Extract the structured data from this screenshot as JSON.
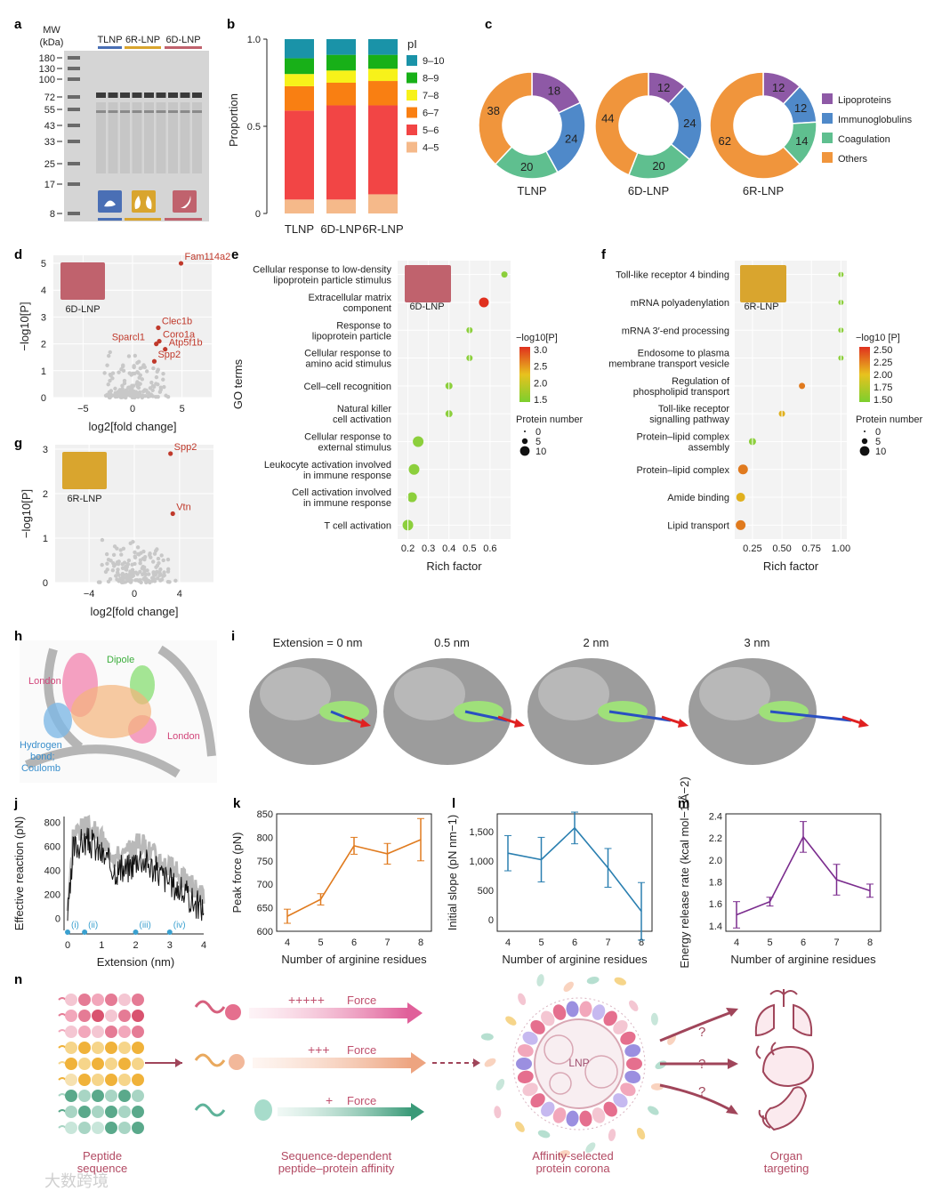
{
  "panels": [
    "a",
    "b",
    "c",
    "d",
    "e",
    "f",
    "g",
    "h",
    "i",
    "j",
    "k",
    "l",
    "m",
    "n"
  ],
  "a": {
    "mw_label": [
      "MW",
      "(kDa)"
    ],
    "markers": [
      "180",
      "130",
      "100",
      "72",
      "55",
      "43",
      "33",
      "25",
      "17",
      "8"
    ],
    "groups": [
      "TLNP",
      "6R-LNP",
      "6D-LNP"
    ],
    "group_colors": [
      "#4a6fb5",
      "#d9a52e",
      "#c0626d"
    ]
  },
  "b": {
    "ylabel": "Proportion",
    "yticks": [
      "0",
      "0.5",
      "1.0"
    ],
    "legend_title": "pI",
    "legend": [
      "9–10",
      "8–9",
      "7–8",
      "6–7",
      "5–6",
      "4–5"
    ],
    "colors": [
      "#1a93a8",
      "#18b018",
      "#f7f21a",
      "#f97f12",
      "#f24545",
      "#f5b98a"
    ]
  },
  "chart_data": [
    {
      "type": "bar",
      "categories": [
        "TLNP",
        "6D-LNP",
        "6R-LNP"
      ],
      "series": [
        {
          "name": "4–5",
          "values": [
            0.08,
            0.08,
            0.11
          ]
        },
        {
          "name": "5–6",
          "values": [
            0.51,
            0.54,
            0.51
          ]
        },
        {
          "name": "6–7",
          "values": [
            0.14,
            0.13,
            0.14
          ]
        },
        {
          "name": "7–8",
          "values": [
            0.07,
            0.07,
            0.07
          ]
        },
        {
          "name": "8–9",
          "values": [
            0.09,
            0.09,
            0.08
          ]
        },
        {
          "name": "9–10",
          "values": [
            0.11,
            0.09,
            0.09
          ]
        }
      ],
      "ylabel": "Proportion",
      "ylim": [
        0,
        1
      ]
    },
    {
      "type": "pie",
      "groups": [
        {
          "name": "TLNP",
          "values": [
            18,
            24,
            20,
            38
          ]
        },
        {
          "name": "6D-LNP",
          "values": [
            12,
            24,
            20,
            44
          ]
        },
        {
          "name": "6R-LNP",
          "values": [
            12,
            12,
            14,
            62
          ]
        }
      ],
      "labels": [
        "Lipoproteins",
        "Immunoglobulins",
        "Coagulation",
        "Others"
      ],
      "colors": [
        "#8e59a6",
        "#4f89c9",
        "#5fbf8f",
        "#f0953c"
      ]
    },
    {
      "type": "scatter",
      "title": "6D-LNP",
      "xlabel": "log2[fold change]",
      "ylabel": "−log10[P]",
      "xlim": [
        -8,
        8
      ],
      "ylim": [
        0,
        5.3
      ],
      "xticks": [
        "−5",
        "0",
        "5"
      ],
      "yticks": [
        "0",
        "1",
        "2",
        "3",
        "4",
        "5"
      ],
      "highlight": [
        {
          "name": "Fam114a2",
          "x": 4.9,
          "y": 5.0
        },
        {
          "name": "Clec1b",
          "x": 2.6,
          "y": 2.6
        },
        {
          "name": "Coro1a",
          "x": 2.7,
          "y": 2.1
        },
        {
          "name": "Sparcl1",
          "x": 2.4,
          "y": 2.0
        },
        {
          "name": "Atp5f1b",
          "x": 3.3,
          "y": 1.8
        },
        {
          "name": "Spp2",
          "x": 2.2,
          "y": 1.35
        }
      ]
    },
    {
      "type": "scatter",
      "title": "6R-LNP",
      "xlabel": "log2[fold change]",
      "ylabel": "−log10[P]",
      "xlim": [
        -7,
        7
      ],
      "ylim": [
        0,
        3.1
      ],
      "xticks": [
        "−4",
        "0",
        "4"
      ],
      "yticks": [
        "0",
        "1",
        "2",
        "3"
      ],
      "highlight": [
        {
          "name": "Spp2",
          "x": 3.2,
          "y": 2.9
        },
        {
          "name": "Vtn",
          "x": 3.4,
          "y": 1.55
        }
      ]
    },
    {
      "type": "scatter",
      "title": "6D-LNP",
      "xlabel": "Rich factor",
      "ylabel": "GO terms",
      "xticks": [
        "0.2",
        "0.3",
        "0.4",
        "0.5",
        "0.6"
      ],
      "terms": [
        {
          "label": "Cellular response to low-density lipoprotein particle stimulus",
          "x": 0.67,
          "p": 1.6,
          "n": 3
        },
        {
          "label": "Extracellular matrix component",
          "x": 0.57,
          "p": 3.0,
          "n": 7
        },
        {
          "label": "Response to lipoprotein particle",
          "x": 0.5,
          "p": 1.7,
          "n": 3
        },
        {
          "label": "Cellular response to amino acid stimulus",
          "x": 0.5,
          "p": 1.7,
          "n": 3
        },
        {
          "label": "Cell–cell recognition",
          "x": 0.4,
          "p": 1.7,
          "n": 4
        },
        {
          "label": "Natural killer cell activation",
          "x": 0.4,
          "p": 1.6,
          "n": 4
        },
        {
          "label": "Cellular response to external stimulus",
          "x": 0.25,
          "p": 1.6,
          "n": 8
        },
        {
          "label": "Leukocyte activation involved in immune response",
          "x": 0.23,
          "p": 1.6,
          "n": 8
        },
        {
          "label": "Cell activation involved in immune response",
          "x": 0.22,
          "p": 1.6,
          "n": 7
        },
        {
          "label": "T cell activation",
          "x": 0.2,
          "p": 1.6,
          "n": 8
        }
      ],
      "legend_p": [
        "3.0",
        "2.5",
        "2.0",
        "1.5"
      ],
      "legend_n": [
        "0",
        "5",
        "10"
      ]
    },
    {
      "type": "scatter",
      "title": "6R-LNP",
      "xlabel": "Rich factor",
      "xticks": [
        "0.25",
        "0.50",
        "0.75",
        "1.00"
      ],
      "terms": [
        {
          "label": "Toll-like receptor 4 binding",
          "x": 1.0,
          "p": 1.55,
          "n": 2
        },
        {
          "label": "mRNA polyadenylation",
          "x": 1.0,
          "p": 1.55,
          "n": 2
        },
        {
          "label": "mRNA 3′-end processing",
          "x": 1.0,
          "p": 1.55,
          "n": 2
        },
        {
          "label": "Endosome to plasma membrane transport vesicle",
          "x": 1.0,
          "p": 1.55,
          "n": 2
        },
        {
          "label": "Regulation of phospholipid transport",
          "x": 0.67,
          "p": 2.2,
          "n": 3
        },
        {
          "label": "Toll-like receptor signalling pathway",
          "x": 0.5,
          "p": 2.1,
          "n": 3
        },
        {
          "label": "Protein–lipid complex assembly",
          "x": 0.25,
          "p": 1.6,
          "n": 4
        },
        {
          "label": "Protein–lipid complex",
          "x": 0.17,
          "p": 2.5,
          "n": 7
        },
        {
          "label": "Amide binding",
          "x": 0.15,
          "p": 1.9,
          "n": 6
        },
        {
          "label": "Lipid transport",
          "x": 0.15,
          "p": 2.3,
          "n": 7
        }
      ],
      "legend_p": [
        "2.50",
        "2.25",
        "2.00",
        "1.75",
        "1.50"
      ],
      "legend_n": [
        "0",
        "5",
        "10"
      ]
    },
    {
      "type": "line",
      "xlabel": "Extension (nm)",
      "ylabel": "Effective reaction (pN)",
      "xlim": [
        0,
        4
      ],
      "ylim": [
        -100,
        850
      ],
      "xticks": [
        "0",
        "1",
        "2",
        "3",
        "4"
      ],
      "yticks": [
        "0",
        "200",
        "400",
        "600",
        "800"
      ],
      "markers": [
        {
          "name": "(i)",
          "x": 0
        },
        {
          "name": "(ii)",
          "x": 0.5
        },
        {
          "name": "(iii)",
          "x": 2
        },
        {
          "name": "(iv)",
          "x": 3
        }
      ]
    },
    {
      "type": "line",
      "xlabel": "Number of arginine residues",
      "ylabel": "Peak force (pN)",
      "x": [
        4,
        5,
        6,
        7,
        8
      ],
      "values": [
        632,
        668,
        782,
        765,
        795
      ],
      "errors": [
        15,
        12,
        18,
        22,
        45
      ],
      "ylim": [
        600,
        850
      ],
      "yticks": [
        "600",
        "650",
        "700",
        "750",
        "800",
        "850"
      ],
      "color": "#e07b1f"
    },
    {
      "type": "line",
      "xlabel": "Number of arginine residues",
      "ylabel": "Initial slope (pN nm−1)",
      "x": [
        4,
        5,
        6,
        7,
        8
      ],
      "values": [
        1130,
        1020,
        1560,
        880,
        140
      ],
      "errors": [
        300,
        380,
        270,
        330,
        490
      ],
      "ylim": [
        -200,
        1800
      ],
      "yticks": [
        "0",
        "500",
        "1,000",
        "1,500"
      ],
      "color": "#2a7fb0"
    },
    {
      "type": "line",
      "xlabel": "Number of arginine residues",
      "ylabel": "Energy release rate (kcal mol−1 Å−2)",
      "x": [
        4,
        5,
        6,
        7,
        8
      ],
      "values": [
        1.5,
        1.62,
        2.21,
        1.82,
        1.72
      ],
      "errors": [
        0.12,
        0.04,
        0.14,
        0.14,
        0.06
      ],
      "ylim": [
        1.35,
        2.42
      ],
      "yticks": [
        "1.4",
        "1.6",
        "1.8",
        "2.0",
        "2.2",
        "2.4"
      ],
      "color": "#7b2d8e"
    }
  ],
  "c": {
    "names": [
      "TLNP",
      "6D-LNP",
      "6R-LNP"
    ],
    "legend": [
      "Lipoproteins",
      "Immunoglobulins",
      "Coagulation",
      "Others"
    ]
  },
  "f": {
    "ylabel": "GO terms",
    "legend_p_title": "−log10[P]",
    "legend_n_title": "Protein number"
  },
  "g": {
    "legend_p_title": "−log10 [P]",
    "legend_n_title": "Protein number"
  },
  "h": {
    "labels": [
      "Dipole",
      "London",
      "London",
      "Hydrogen",
      "bond;",
      "Coulomb"
    ]
  },
  "i": {
    "titles": [
      "Extension = 0 nm",
      "0.5 nm",
      "2 nm",
      "3 nm"
    ]
  },
  "n": {
    "force_labels": [
      {
        "plus": "+++++",
        "text": "Force"
      },
      {
        "plus": "+++",
        "text": "Force"
      },
      {
        "plus": "+",
        "text": "Force"
      }
    ],
    "lnp": "LNP",
    "question": "?",
    "captions": [
      [
        "Peptide",
        "sequence"
      ],
      [
        "Sequence-dependent",
        "peptide–protein affinity"
      ],
      [
        "Affinity-selected",
        "protein corona"
      ],
      [
        "Organ",
        "targeting"
      ]
    ]
  },
  "watermark": "大数跨境"
}
